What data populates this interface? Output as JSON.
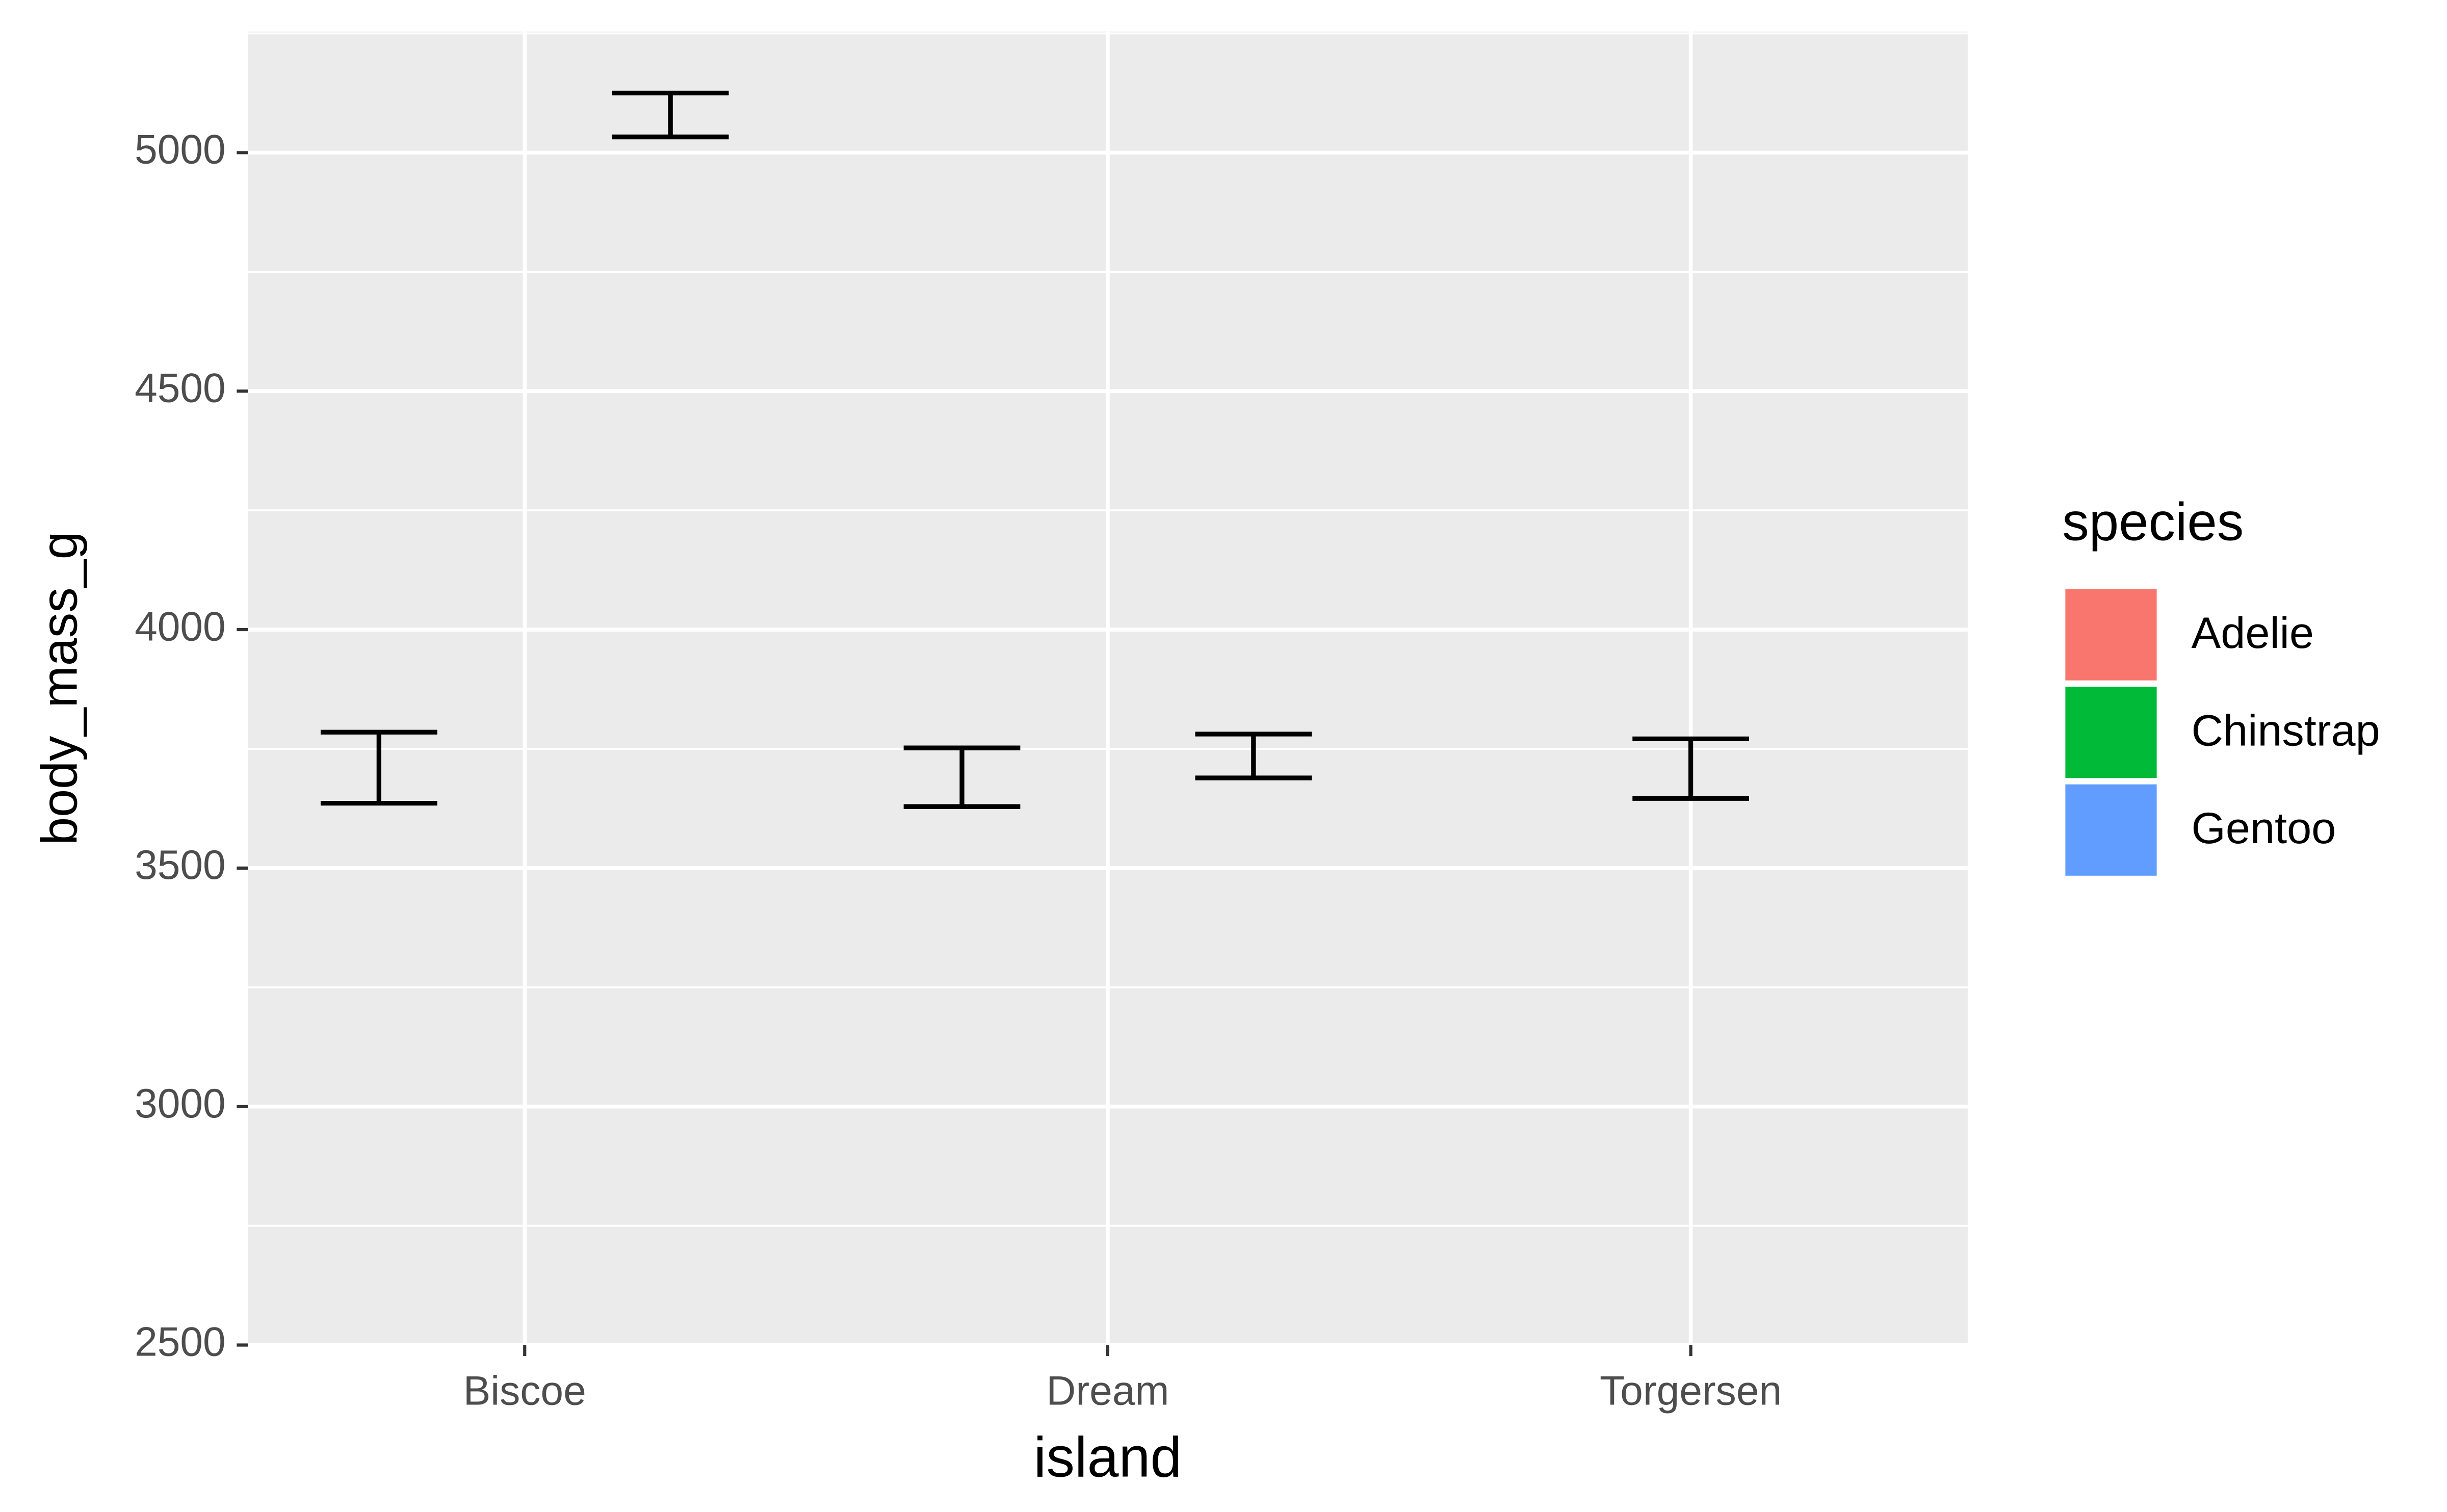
{
  "chart_data": {
    "type": "errorbar",
    "x_label": "island",
    "y_label": "body_mass_g",
    "categories": [
      "Biscoe",
      "Dream",
      "Torgersen"
    ],
    "series": [
      {
        "name": "Adelie",
        "color": "#f8766d",
        "lower": [
          3636,
          3629,
          3646
        ],
        "upper": [
          3785,
          3752,
          3771
        ]
      },
      {
        "name": "Chinstrap",
        "color": "#00ba38",
        "lower": [
          null,
          3689,
          null
        ],
        "upper": [
          null,
          3781,
          null
        ]
      },
      {
        "name": "Gentoo",
        "color": "#619cff",
        "lower": [
          5033,
          null,
          null
        ],
        "upper": [
          5125,
          null,
          null
        ]
      }
    ],
    "errorbar_color": "#000000",
    "legend_title": "species",
    "legend_position": "right",
    "ylim": [
      2500,
      5254
    ],
    "yticks": [
      2500,
      3000,
      3500,
      4000,
      4500,
      5000
    ],
    "grid": true
  }
}
